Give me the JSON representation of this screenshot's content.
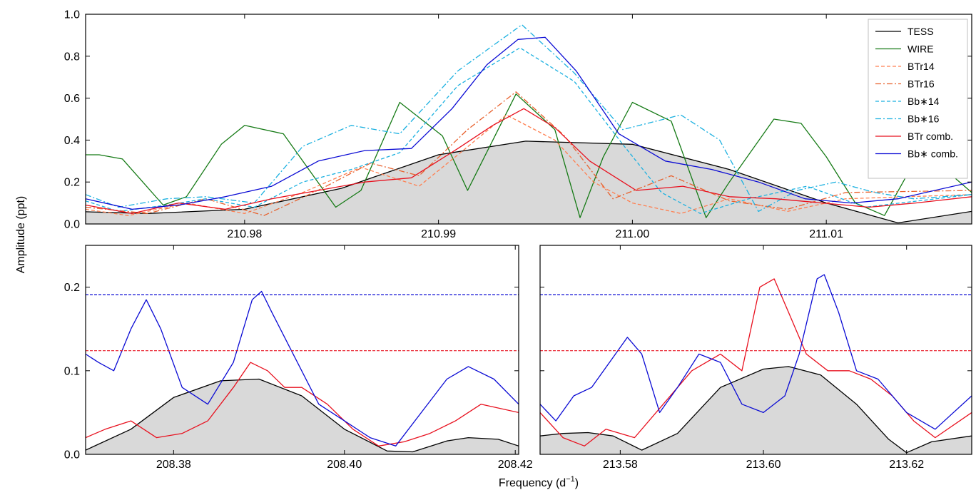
{
  "figure": {
    "ylabel": "Amplitude (ppt)",
    "xlabel": "Frequency (d",
    "xlabel_sup": "−1",
    "xlabel_close": ")"
  },
  "chart_data": [
    {
      "panel": "top",
      "type": "line",
      "xlim": [
        210.9718,
        211.0175
      ],
      "ylim": [
        0,
        1.0
      ],
      "xticks": [
        210.98,
        210.99,
        211.0,
        211.01
      ],
      "xtick_labels": [
        "210.98",
        "210.99",
        "211.00",
        "211.01"
      ],
      "yticks": [
        0,
        0.2,
        0.4,
        0.6,
        0.8,
        1.0
      ],
      "ytick_labels": [
        "0.0",
        "0.2",
        "0.4",
        "0.6",
        "0.8",
        "1.0"
      ],
      "grid": false,
      "legend_position": "top-right",
      "series": [
        {
          "name": "TESS",
          "color": "#000000",
          "style": "solid",
          "fill": "#d9d9d9",
          "x": [
            210.9718,
            210.975,
            210.98,
            210.985,
            210.99,
            210.9945,
            211.0,
            211.005,
            211.01,
            211.0137,
            211.0175
          ],
          "y": [
            0.058,
            0.05,
            0.07,
            0.17,
            0.33,
            0.395,
            0.38,
            0.26,
            0.1,
            0.005,
            0.06
          ]
        },
        {
          "name": "WIRE",
          "color": "#157a15",
          "style": "solid",
          "x": [
            210.9718,
            210.9725,
            210.9737,
            210.9758,
            210.977,
            210.9788,
            210.98,
            210.982,
            210.983,
            210.9847,
            210.986,
            210.988,
            210.9902,
            210.9915,
            210.994,
            210.996,
            210.9973,
            210.9985,
            211.0,
            211.002,
            211.0038,
            211.005,
            211.0073,
            211.0087,
            211.01,
            211.0115,
            211.013,
            211.0145,
            211.016,
            211.0175
          ],
          "y": [
            0.33,
            0.33,
            0.31,
            0.09,
            0.13,
            0.38,
            0.47,
            0.43,
            0.3,
            0.08,
            0.16,
            0.58,
            0.42,
            0.16,
            0.62,
            0.45,
            0.03,
            0.32,
            0.58,
            0.49,
            0.03,
            0.2,
            0.5,
            0.48,
            0.32,
            0.1,
            0.04,
            0.29,
            0.27,
            0.15
          ]
        },
        {
          "name": "BTr14",
          "color": "#ff7f50",
          "style": "dashed",
          "x": [
            210.9718,
            210.974,
            210.977,
            210.98,
            210.983,
            210.986,
            210.989,
            210.991,
            210.9935,
            210.996,
            210.998,
            211.0,
            211.0025,
            211.005,
            211.008,
            211.011,
            211.0175
          ],
          "y": [
            0.07,
            0.04,
            0.1,
            0.05,
            0.15,
            0.27,
            0.18,
            0.33,
            0.52,
            0.4,
            0.2,
            0.1,
            0.05,
            0.12,
            0.06,
            0.12,
            0.14
          ]
        },
        {
          "name": "BTr16",
          "color": "#e8602c",
          "style": "dashdot",
          "x": [
            210.9718,
            210.975,
            210.978,
            210.981,
            210.984,
            210.9865,
            210.989,
            210.9915,
            210.994,
            210.9965,
            210.999,
            211.002,
            211.005,
            211.008,
            211.011,
            211.0175
          ],
          "y": [
            0.08,
            0.05,
            0.12,
            0.04,
            0.17,
            0.29,
            0.23,
            0.45,
            0.63,
            0.42,
            0.12,
            0.23,
            0.11,
            0.07,
            0.15,
            0.16
          ]
        },
        {
          "name": "Bb∗14",
          "color": "#1ab0e0",
          "style": "dashed",
          "x": [
            210.9718,
            210.9735,
            210.976,
            210.978,
            210.9805,
            210.983,
            210.9855,
            210.988,
            210.991,
            210.9942,
            210.997,
            210.9995,
            211.0015,
            211.0035,
            211.006,
            211.009,
            211.012,
            211.0175
          ],
          "y": [
            0.11,
            0.06,
            0.09,
            0.12,
            0.08,
            0.2,
            0.26,
            0.34,
            0.66,
            0.84,
            0.68,
            0.38,
            0.15,
            0.05,
            0.12,
            0.18,
            0.08,
            0.14
          ]
        },
        {
          "name": "Bb∗16",
          "color": "#1ab0e0",
          "style": "dashdot",
          "x": [
            210.9718,
            210.9735,
            210.976,
            210.978,
            210.9805,
            210.983,
            210.9855,
            210.988,
            210.991,
            210.9943,
            210.997,
            210.9995,
            211.0025,
            211.0045,
            211.0065,
            211.0085,
            211.0105,
            211.0125,
            211.0145,
            211.0175
          ],
          "y": [
            0.14,
            0.08,
            0.12,
            0.13,
            0.1,
            0.37,
            0.47,
            0.43,
            0.73,
            0.95,
            0.72,
            0.45,
            0.52,
            0.4,
            0.06,
            0.16,
            0.2,
            0.15,
            0.12,
            0.14
          ]
        },
        {
          "name": "BTr comb.",
          "color": "#e8101e",
          "style": "solid",
          "x": [
            210.9718,
            210.9742,
            210.9766,
            210.979,
            210.9814,
            210.9838,
            210.9862,
            210.9886,
            210.991,
            210.9928,
            210.9944,
            210.996,
            210.9978,
            211.0002,
            211.0026,
            211.005,
            211.0074,
            211.0098,
            211.0122,
            211.0146,
            211.0175
          ],
          "y": [
            0.09,
            0.05,
            0.1,
            0.07,
            0.12,
            0.16,
            0.2,
            0.22,
            0.36,
            0.47,
            0.55,
            0.46,
            0.3,
            0.16,
            0.18,
            0.13,
            0.12,
            0.1,
            0.08,
            0.1,
            0.13
          ]
        },
        {
          "name": "Bb∗ comb.",
          "color": "#0a0ad4",
          "style": "solid",
          "x": [
            210.9718,
            210.9742,
            210.9766,
            210.979,
            210.9814,
            210.9838,
            210.9862,
            210.9886,
            210.9907,
            210.9925,
            210.9941,
            210.9955,
            210.9971,
            210.9993,
            211.0017,
            211.0041,
            211.0065,
            211.0089,
            211.0113,
            211.0137,
            211.0175
          ],
          "y": [
            0.12,
            0.07,
            0.09,
            0.13,
            0.18,
            0.3,
            0.35,
            0.36,
            0.55,
            0.76,
            0.88,
            0.89,
            0.73,
            0.43,
            0.3,
            0.26,
            0.2,
            0.12,
            0.1,
            0.12,
            0.2
          ]
        }
      ]
    },
    {
      "panel": "bottom-left",
      "type": "line",
      "xlim": [
        208.3697,
        208.4204
      ],
      "ylim": [
        0,
        0.25
      ],
      "xticks": [
        208.38,
        208.4,
        208.42
      ],
      "xtick_labels": [
        "208.38",
        "208.40",
        "208.42"
      ],
      "yticks": [
        0,
        0.1,
        0.2
      ],
      "ytick_labels": [
        "0.0",
        "0.1",
        "0.2"
      ],
      "grid": false,
      "hlines": [
        {
          "y": 0.191,
          "color": "#0a0ad4",
          "style": "dashed"
        },
        {
          "y": 0.124,
          "color": "#e8101e",
          "style": "dashed"
        }
      ],
      "series": [
        {
          "name": "TESS",
          "color": "#000000",
          "style": "solid",
          "fill": "#d9d9d9",
          "x": [
            208.3697,
            208.375,
            208.38,
            208.3855,
            208.39,
            208.395,
            208.4,
            208.405,
            208.408,
            208.412,
            208.4145,
            208.418,
            208.4204
          ],
          "y": [
            0.005,
            0.03,
            0.068,
            0.088,
            0.09,
            0.07,
            0.03,
            0.004,
            0.003,
            0.016,
            0.02,
            0.018,
            0.01
          ]
        },
        {
          "name": "BTr comb.",
          "color": "#e8101e",
          "style": "solid",
          "x": [
            208.3697,
            208.372,
            208.375,
            208.378,
            208.381,
            208.384,
            208.387,
            208.389,
            208.391,
            208.393,
            208.395,
            208.398,
            208.401,
            208.404,
            208.407,
            208.41,
            208.413,
            208.416,
            208.4204
          ],
          "y": [
            0.02,
            0.03,
            0.04,
            0.02,
            0.025,
            0.04,
            0.08,
            0.11,
            0.1,
            0.08,
            0.08,
            0.06,
            0.03,
            0.01,
            0.015,
            0.025,
            0.04,
            0.06,
            0.05
          ]
        },
        {
          "name": "Bb∗ comb.",
          "color": "#0a0ad4",
          "style": "solid",
          "x": [
            208.3697,
            208.3712,
            208.373,
            208.375,
            208.3768,
            208.3785,
            208.381,
            208.384,
            208.387,
            208.3892,
            208.3903,
            208.3915,
            208.394,
            208.397,
            208.4,
            208.403,
            208.406,
            208.409,
            208.412,
            208.4145,
            208.4175,
            208.4204
          ],
          "y": [
            0.12,
            0.11,
            0.1,
            0.15,
            0.185,
            0.15,
            0.08,
            0.06,
            0.11,
            0.185,
            0.195,
            0.17,
            0.12,
            0.06,
            0.04,
            0.02,
            0.01,
            0.05,
            0.09,
            0.105,
            0.09,
            0.06
          ]
        }
      ]
    },
    {
      "panel": "bottom-right",
      "type": "line",
      "xlim": [
        213.5688,
        213.6291
      ],
      "ylim": [
        0,
        0.25
      ],
      "xticks": [
        213.58,
        213.6,
        213.62
      ],
      "xtick_labels": [
        "213.58",
        "213.60",
        "213.62"
      ],
      "yticks": [
        0,
        0.1,
        0.2
      ],
      "ytick_labels": [],
      "grid": false,
      "hlines": [
        {
          "y": 0.191,
          "color": "#0a0ad4",
          "style": "dashed"
        },
        {
          "y": 0.124,
          "color": "#e8101e",
          "style": "dashed"
        }
      ],
      "series": [
        {
          "name": "TESS",
          "color": "#000000",
          "style": "solid",
          "fill": "#d9d9d9",
          "x": [
            213.5688,
            213.572,
            213.5755,
            213.579,
            213.583,
            213.588,
            213.594,
            213.6,
            213.6035,
            213.608,
            213.613,
            213.6175,
            213.62,
            213.6235,
            213.6291
          ],
          "y": [
            0.022,
            0.025,
            0.026,
            0.022,
            0.005,
            0.025,
            0.08,
            0.102,
            0.105,
            0.095,
            0.06,
            0.018,
            0.002,
            0.015,
            0.022
          ]
        },
        {
          "name": "BTr comb.",
          "color": "#e8101e",
          "style": "solid",
          "x": [
            213.5688,
            213.572,
            213.575,
            213.578,
            213.582,
            213.586,
            213.59,
            213.594,
            213.597,
            213.5995,
            213.6015,
            213.6035,
            213.606,
            213.609,
            213.612,
            213.615,
            213.618,
            213.621,
            213.624,
            213.6291
          ],
          "y": [
            0.05,
            0.02,
            0.01,
            0.03,
            0.02,
            0.06,
            0.1,
            0.12,
            0.1,
            0.2,
            0.21,
            0.17,
            0.12,
            0.1,
            0.1,
            0.09,
            0.07,
            0.04,
            0.02,
            0.05
          ]
        },
        {
          "name": "Bb∗ comb.",
          "color": "#0a0ad4",
          "style": "solid",
          "x": [
            213.5688,
            213.571,
            213.5735,
            213.576,
            213.5785,
            213.581,
            213.583,
            213.5855,
            213.588,
            213.591,
            213.594,
            213.597,
            213.6,
            213.603,
            213.605,
            213.6075,
            213.6085,
            213.6105,
            213.613,
            213.616,
            213.62,
            213.624,
            213.6291
          ],
          "y": [
            0.06,
            0.04,
            0.07,
            0.08,
            0.11,
            0.14,
            0.12,
            0.05,
            0.08,
            0.12,
            0.11,
            0.06,
            0.05,
            0.07,
            0.12,
            0.21,
            0.215,
            0.17,
            0.1,
            0.09,
            0.05,
            0.03,
            0.07
          ]
        }
      ]
    }
  ]
}
